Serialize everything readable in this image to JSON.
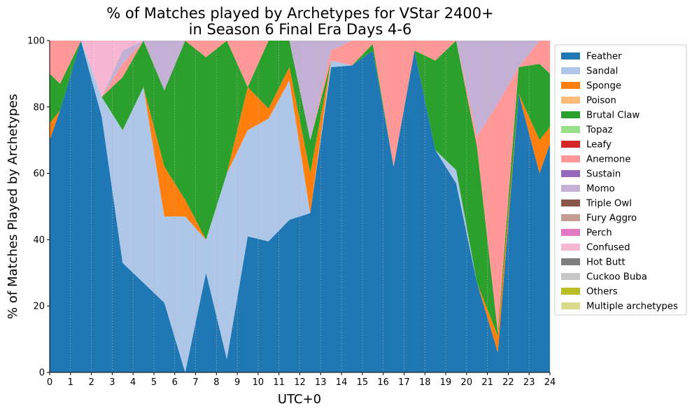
{
  "chart_data": {
    "type": "area",
    "stacked": true,
    "title_lines": [
      "% of Matches played by Archetypes for VStar 2400+",
      "in Season 6 Final Era Days 4-6"
    ],
    "xlabel": "UTC+0",
    "ylabel": "% of Matches Played by Archetypes",
    "xlim": [
      0,
      24
    ],
    "ylim": [
      0,
      100
    ],
    "xticks": [
      "0",
      "1",
      "2",
      "3",
      "4",
      "5",
      "6",
      "7",
      "8",
      "9",
      "10",
      "11",
      "12",
      "13",
      "14",
      "15",
      "16",
      "17",
      "18",
      "19",
      "20",
      "21",
      "22",
      "23",
      "24"
    ],
    "yticks": [
      "0",
      "20",
      "40",
      "60",
      "80",
      "100"
    ],
    "vertical_grid": true,
    "legend_position": "outside-right",
    "x": [
      0,
      0.5,
      1.5,
      2.5,
      3.5,
      4.5,
      5.5,
      6.5,
      7.5,
      8.5,
      9.5,
      10.5,
      11.5,
      12.5,
      13.5,
      14.5,
      15.5,
      16.5,
      17.5,
      18.5,
      19.5,
      20.5,
      21.5,
      22.5,
      23.5,
      24
    ],
    "series": [
      {
        "name": "Feather",
        "color": "#1f77b4",
        "values": [
          70,
          79,
          100,
          77,
          33,
          27,
          21,
          0,
          30,
          4,
          41,
          39.5,
          46,
          48,
          92,
          92.5,
          97,
          62,
          97,
          67,
          57,
          27,
          6,
          84,
          60,
          69
        ]
      },
      {
        "name": "Sandal",
        "color": "#aec7e8",
        "values": [
          0,
          0,
          0,
          6,
          40,
          59,
          26,
          47,
          10,
          56,
          32,
          37,
          42,
          0,
          2,
          0,
          0,
          0,
          0,
          0,
          4,
          0,
          0,
          0,
          0,
          0
        ]
      },
      {
        "name": "Sponge",
        "color": "#ff7f0e",
        "values": [
          5,
          0,
          0,
          0,
          0,
          0,
          15,
          5,
          0,
          0,
          13,
          3,
          4,
          12,
          0,
          0,
          0,
          0,
          0,
          0,
          0,
          0,
          5,
          0,
          10,
          5
        ]
      },
      {
        "name": "Poison",
        "color": "#ffbb78",
        "values": [
          0,
          0,
          0,
          0,
          0,
          0,
          0,
          0,
          0,
          0,
          0,
          0,
          0,
          0,
          0,
          0,
          0,
          0,
          0,
          0,
          0,
          0,
          0,
          0,
          0,
          0
        ]
      },
      {
        "name": "Brutal Claw",
        "color": "#2ca02c",
        "values": [
          15,
          8,
          0,
          0,
          16,
          14,
          23,
          48,
          55,
          40,
          0,
          21,
          8,
          10,
          0,
          0,
          2,
          0,
          0,
          27,
          39,
          41,
          1,
          8,
          23,
          16
        ]
      },
      {
        "name": "Topaz",
        "color": "#98df8a",
        "values": [
          0,
          0,
          0,
          0,
          0,
          0,
          0,
          0,
          0,
          0,
          0,
          0,
          0,
          0,
          0,
          0,
          0,
          0,
          0,
          0,
          0,
          0,
          0,
          0,
          0,
          0
        ]
      },
      {
        "name": "Leafy",
        "color": "#d62728",
        "values": [
          0,
          0,
          0,
          0,
          0,
          0,
          0,
          0,
          0,
          0,
          0,
          0,
          0,
          0,
          0,
          0,
          0,
          0,
          0,
          0,
          0,
          0,
          0,
          0,
          0,
          0
        ]
      },
      {
        "name": "Anemone",
        "color": "#ff9896",
        "values": [
          10,
          13,
          0,
          0,
          4,
          0,
          0,
          0,
          5,
          0,
          14,
          0,
          0,
          0,
          3,
          7.5,
          1,
          38,
          3,
          6,
          0,
          3,
          69,
          0,
          7,
          10
        ]
      },
      {
        "name": "Sustain",
        "color": "#9467bd",
        "values": [
          0,
          0,
          0,
          0,
          0,
          0,
          0,
          0,
          0,
          0,
          0,
          0,
          0,
          0,
          0,
          0,
          0,
          0,
          0,
          0,
          0,
          0,
          0,
          0,
          0,
          0
        ]
      },
      {
        "name": "Momo",
        "color": "#c5b0d5",
        "values": [
          0,
          0,
          0,
          0,
          4,
          0,
          15,
          0,
          0,
          0,
          0,
          0,
          0,
          30,
          3,
          0,
          0,
          0,
          0,
          0,
          0,
          29,
          19,
          8,
          0,
          0
        ]
      },
      {
        "name": "Triple Owl",
        "color": "#8c564b",
        "values": [
          0,
          0,
          0,
          0,
          0,
          0,
          0,
          0,
          0,
          0,
          0,
          0,
          0,
          0,
          0,
          0,
          0,
          0,
          0,
          0,
          0,
          0,
          0,
          0,
          0,
          0
        ]
      },
      {
        "name": "Fury Aggro",
        "color": "#c49c94",
        "values": [
          0,
          0,
          0,
          0,
          0,
          0,
          0,
          0,
          0,
          0,
          0,
          0,
          0,
          0,
          0,
          0,
          0,
          0,
          0,
          0,
          0,
          0,
          0,
          0,
          0,
          0
        ]
      },
      {
        "name": "Perch",
        "color": "#e377c2",
        "values": [
          0,
          0,
          0,
          0,
          0,
          0,
          0,
          0,
          0,
          0,
          0,
          0,
          0,
          0,
          0,
          0,
          0,
          0,
          0,
          0,
          0,
          0,
          0,
          0,
          0,
          0
        ]
      },
      {
        "name": "Confused",
        "color": "#f7b6d2",
        "values": [
          0,
          0,
          0,
          17,
          3,
          0,
          0,
          0,
          0,
          0,
          0,
          0,
          0,
          0,
          0,
          0,
          0,
          0,
          0,
          0,
          0,
          0,
          0,
          0,
          0,
          0
        ]
      },
      {
        "name": "Hot Butt",
        "color": "#7f7f7f",
        "values": [
          0,
          0,
          0,
          0,
          0,
          0,
          0,
          0,
          0,
          0,
          0,
          0,
          0,
          0,
          0,
          0,
          0,
          0,
          0,
          0,
          0,
          0,
          0,
          0,
          0,
          0
        ]
      },
      {
        "name": "Cuckoo Buba",
        "color": "#c7c7c7",
        "values": [
          0,
          0,
          0,
          0,
          0,
          0,
          0,
          0,
          0,
          0,
          0,
          0,
          0,
          0,
          0,
          0,
          0,
          0,
          0,
          0,
          0,
          0,
          0,
          0,
          0,
          0
        ]
      },
      {
        "name": "Others",
        "color": "#bcbd22",
        "values": [
          0,
          0,
          0,
          0,
          0,
          0,
          0,
          0,
          0,
          0,
          0,
          0,
          0,
          0,
          0,
          0,
          0,
          0,
          0,
          0,
          0,
          0,
          0,
          0,
          0,
          0
        ]
      },
      {
        "name": "Multiple archetypes",
        "color": "#dbdb8d",
        "values": [
          0,
          0,
          0,
          0,
          0,
          0,
          0,
          0,
          0,
          0,
          0,
          0,
          0,
          0,
          0,
          0,
          0,
          0,
          0,
          0,
          0,
          0,
          0,
          0,
          0,
          0
        ]
      }
    ]
  }
}
